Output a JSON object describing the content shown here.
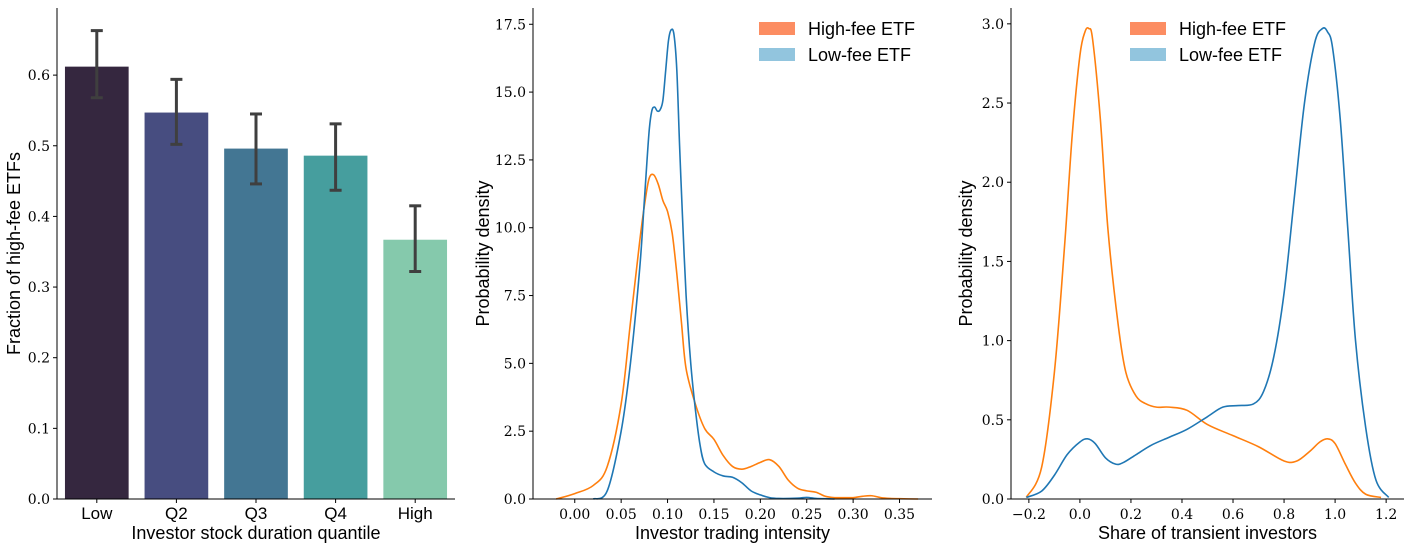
{
  "chart_data": [
    {
      "type": "bar",
      "categories": [
        "Low",
        "Q2",
        "Q3",
        "Q4",
        "High"
      ],
      "values": [
        0.612,
        0.547,
        0.496,
        0.486,
        0.367
      ],
      "error_low": [
        0.568,
        0.502,
        0.446,
        0.437,
        0.322
      ],
      "error_high": [
        0.663,
        0.594,
        0.545,
        0.531,
        0.415
      ],
      "colors": [
        "#35273f",
        "#474d80",
        "#437693",
        "#469e9e",
        "#85c9ac"
      ],
      "xlabel": "Investor stock duration quantile",
      "ylabel": "Fraction of high-fee ETFs",
      "ylim": [
        0,
        0.695
      ],
      "yticks": [
        0.0,
        0.1,
        0.2,
        0.3,
        0.4,
        0.5,
        0.6
      ],
      "ytick_labels": [
        "0.0",
        "0.1",
        "0.2",
        "0.3",
        "0.4",
        "0.5",
        "0.6"
      ],
      "grid": false
    },
    {
      "type": "line",
      "xlabel": "Investor trading intensity",
      "ylabel": "Probability density",
      "xlim": [
        -0.045,
        0.385
      ],
      "ylim": [
        0,
        18.1
      ],
      "xticks": [
        0.0,
        0.05,
        0.1,
        0.15,
        0.2,
        0.25,
        0.3,
        0.35
      ],
      "xtick_labels": [
        "0.00",
        "0.05",
        "0.10",
        "0.15",
        "0.20",
        "0.25",
        "0.30",
        "0.35"
      ],
      "yticks": [
        0.0,
        2.5,
        5.0,
        7.5,
        10.0,
        12.5,
        15.0,
        17.5
      ],
      "ytick_labels": [
        "0.0",
        "2.5",
        "5.0",
        "7.5",
        "10.0",
        "12.5",
        "15.0",
        "17.5"
      ],
      "legend": [
        {
          "name": "High-fee ETF",
          "color": "#fc8d62"
        },
        {
          "name": "Low-fee ETF",
          "color": "#92c5de"
        }
      ],
      "legend_position": "top-right",
      "grid": false,
      "series": [
        {
          "color": "#ff7f0e",
          "x": [
            -0.02,
            0.0,
            0.02,
            0.035,
            0.05,
            0.06,
            0.07,
            0.075,
            0.08,
            0.085,
            0.09,
            0.095,
            0.1,
            0.105,
            0.11,
            0.115,
            0.12,
            0.13,
            0.14,
            0.15,
            0.16,
            0.17,
            0.18,
            0.19,
            0.2,
            0.21,
            0.22,
            0.23,
            0.24,
            0.25,
            0.26,
            0.27,
            0.28,
            0.29,
            0.3,
            0.31,
            0.32,
            0.33,
            0.34,
            0.35,
            0.37
          ],
          "y": [
            0.0,
            0.2,
            0.5,
            1.2,
            3.5,
            6.5,
            9.5,
            10.8,
            11.8,
            11.95,
            11.6,
            11.0,
            10.6,
            9.8,
            8.3,
            6.5,
            4.8,
            3.5,
            2.6,
            2.2,
            1.6,
            1.2,
            1.1,
            1.2,
            1.35,
            1.45,
            1.2,
            0.7,
            0.4,
            0.3,
            0.25,
            0.1,
            0.05,
            0.05,
            0.05,
            0.1,
            0.12,
            0.05,
            0.02,
            0.01,
            0.0
          ]
        },
        {
          "color": "#1f77b4",
          "x": [
            0.02,
            0.035,
            0.05,
            0.06,
            0.07,
            0.075,
            0.08,
            0.083,
            0.086,
            0.089,
            0.092,
            0.095,
            0.098,
            0.101,
            0.104,
            0.107,
            0.11,
            0.113,
            0.116,
            0.12,
            0.125,
            0.13,
            0.135,
            0.14,
            0.15,
            0.16,
            0.17,
            0.18,
            0.19,
            0.2,
            0.21,
            0.22,
            0.24,
            0.25,
            0.26,
            0.27,
            0.28
          ],
          "y": [
            0.0,
            0.3,
            2.5,
            5.0,
            8.5,
            11.0,
            13.5,
            14.3,
            14.45,
            14.3,
            14.35,
            14.7,
            15.8,
            16.9,
            17.3,
            17.1,
            15.8,
            13.0,
            10.5,
            7.5,
            5.0,
            3.3,
            2.0,
            1.3,
            1.0,
            0.85,
            0.8,
            0.6,
            0.3,
            0.15,
            0.05,
            0.02,
            0.03,
            0.06,
            0.02,
            0.01,
            0.0
          ]
        }
      ]
    },
    {
      "type": "line",
      "xlabel": "Share of transient investors",
      "ylabel": "Probability density",
      "xlim": [
        -0.27,
        1.27
      ],
      "ylim": [
        0,
        3.1
      ],
      "xticks": [
        -0.2,
        0.0,
        0.2,
        0.4,
        0.6,
        0.8,
        1.0,
        1.2
      ],
      "xtick_labels": [
        "−0.2",
        "0.0",
        "0.2",
        "0.4",
        "0.6",
        "0.8",
        "1.0",
        "1.2"
      ],
      "yticks": [
        0.0,
        0.5,
        1.0,
        1.5,
        2.0,
        2.5,
        3.0
      ],
      "ytick_labels": [
        "0.0",
        "0.5",
        "1.0",
        "1.5",
        "2.0",
        "2.5",
        "3.0"
      ],
      "legend": [
        {
          "name": "High-fee ETF",
          "color": "#fc8d62"
        },
        {
          "name": "Low-fee ETF",
          "color": "#92c5de"
        }
      ],
      "legend_position": "top-center",
      "grid": false,
      "series": [
        {
          "color": "#ff7f0e",
          "x": [
            -0.21,
            -0.15,
            -0.1,
            -0.06,
            -0.03,
            0.0,
            0.02,
            0.035,
            0.05,
            0.08,
            0.11,
            0.15,
            0.18,
            0.22,
            0.26,
            0.3,
            0.35,
            0.42,
            0.5,
            0.6,
            0.7,
            0.8,
            0.85,
            0.9,
            0.94,
            0.97,
            1.0,
            1.04,
            1.08,
            1.12,
            1.18
          ],
          "y": [
            0.01,
            0.2,
            0.8,
            1.6,
            2.3,
            2.8,
            2.95,
            2.97,
            2.9,
            2.4,
            1.7,
            1.1,
            0.8,
            0.65,
            0.6,
            0.58,
            0.58,
            0.56,
            0.47,
            0.4,
            0.33,
            0.24,
            0.24,
            0.3,
            0.36,
            0.38,
            0.35,
            0.22,
            0.1,
            0.03,
            0.01
          ]
        },
        {
          "color": "#1f77b4",
          "x": [
            -0.21,
            -0.15,
            -0.1,
            -0.05,
            0.0,
            0.03,
            0.06,
            0.1,
            0.14,
            0.17,
            0.22,
            0.28,
            0.35,
            0.42,
            0.5,
            0.56,
            0.62,
            0.68,
            0.72,
            0.76,
            0.8,
            0.84,
            0.88,
            0.92,
            0.95,
            0.97,
            0.99,
            1.02,
            1.05,
            1.08,
            1.12,
            1.16,
            1.21
          ],
          "y": [
            0.01,
            0.05,
            0.15,
            0.28,
            0.36,
            0.38,
            0.35,
            0.26,
            0.22,
            0.23,
            0.28,
            0.34,
            0.39,
            0.44,
            0.52,
            0.58,
            0.59,
            0.6,
            0.68,
            0.9,
            1.3,
            1.9,
            2.5,
            2.88,
            2.97,
            2.95,
            2.85,
            2.4,
            1.7,
            1.0,
            0.45,
            0.12,
            0.01
          ]
        }
      ]
    }
  ]
}
